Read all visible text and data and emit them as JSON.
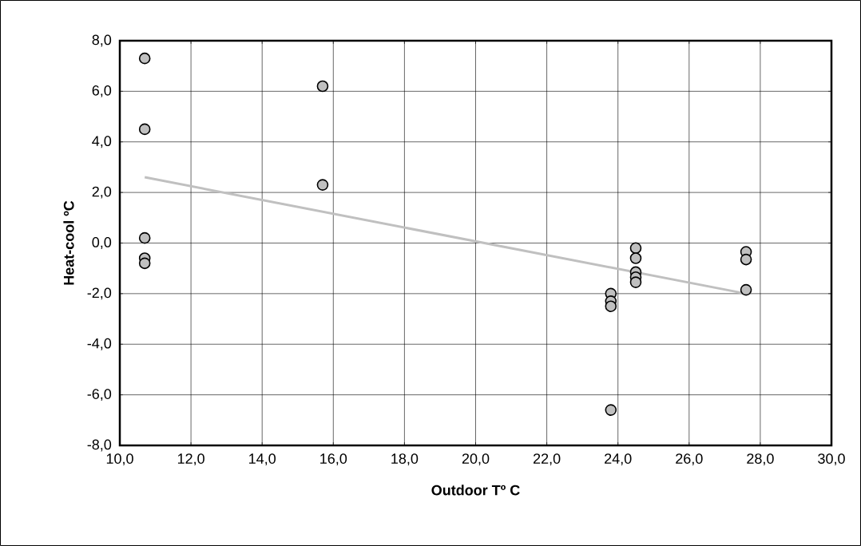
{
  "chart_data": {
    "type": "scatter",
    "xlabel": "Outdoor Tº C",
    "ylabel": "Heat-cool ºC",
    "xlim": [
      10,
      30
    ],
    "ylim": [
      -8,
      8
    ],
    "xticks": [
      {
        "value": 10,
        "label": "10,0"
      },
      {
        "value": 12,
        "label": "12,0"
      },
      {
        "value": 14,
        "label": "14,0"
      },
      {
        "value": 16,
        "label": "16,0"
      },
      {
        "value": 18,
        "label": "18,0"
      },
      {
        "value": 20,
        "label": "20,0"
      },
      {
        "value": 22,
        "label": "22,0"
      },
      {
        "value": 24,
        "label": "24,0"
      },
      {
        "value": 26,
        "label": "26,0"
      },
      {
        "value": 28,
        "label": "28,0"
      },
      {
        "value": 30,
        "label": "30,0"
      }
    ],
    "yticks": [
      {
        "value": -8,
        "label": "-8,0"
      },
      {
        "value": -6,
        "label": "-6,0"
      },
      {
        "value": -4,
        "label": "-4,0"
      },
      {
        "value": -2,
        "label": "-2,0"
      },
      {
        "value": 0,
        "label": "0,0"
      },
      {
        "value": 2,
        "label": "2,0"
      },
      {
        "value": 4,
        "label": "4,0"
      },
      {
        "value": 6,
        "label": "6,0"
      },
      {
        "value": 8,
        "label": "8,0"
      }
    ],
    "grid": true,
    "series": [
      {
        "color": "#c0c0c0",
        "marker": "circle",
        "x": [
          10.7,
          10.7,
          10.7,
          10.7,
          10.7,
          15.7,
          15.7,
          23.8,
          23.8,
          23.8,
          23.8,
          24.5,
          24.5,
          24.5,
          24.5,
          24.5,
          27.6,
          27.6,
          27.6
        ],
        "values": [
          7.3,
          4.5,
          0.2,
          -0.6,
          -0.8,
          6.2,
          2.3,
          -2.0,
          -2.3,
          -2.5,
          -6.6,
          -0.2,
          -0.6,
          -1.15,
          -1.35,
          -1.55,
          -0.35,
          -0.65,
          -1.85
        ]
      },
      {
        "type": "line",
        "color": "#c0c0c0",
        "marker": "none",
        "x": [
          10.7,
          27.6
        ],
        "values": [
          2.6,
          -2.0
        ]
      }
    ]
  }
}
